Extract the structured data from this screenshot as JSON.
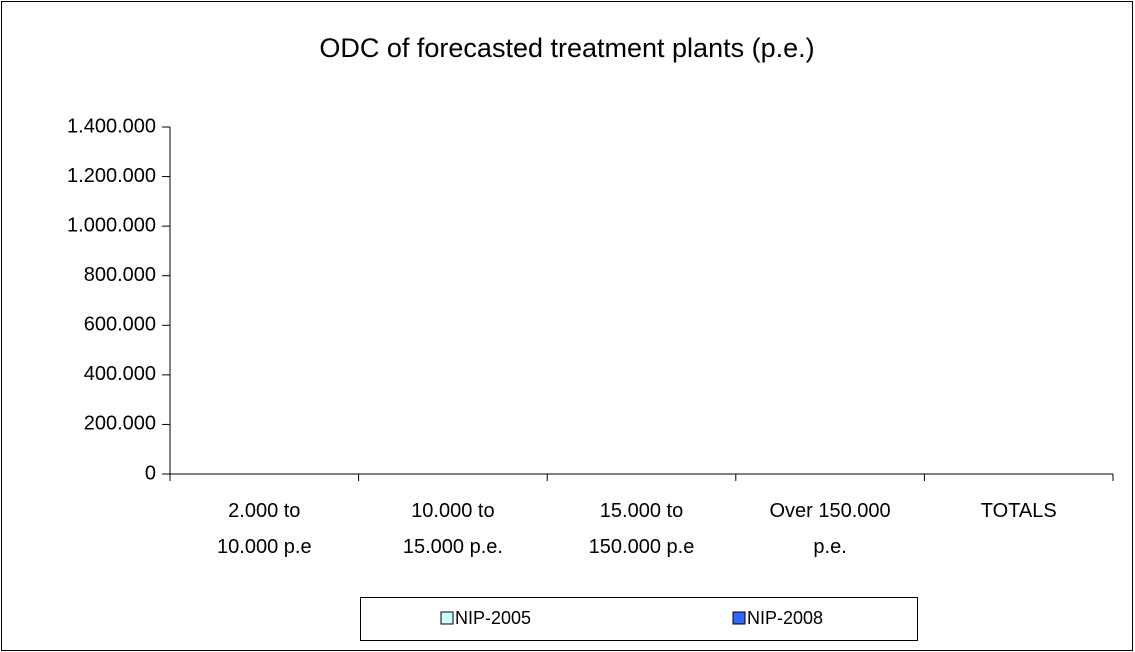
{
  "chart_data": {
    "type": "bar",
    "title": "ODC of forecasted treatment plants (p.e.)",
    "categories": [
      [
        "2.000 to",
        "10.000  p.e"
      ],
      [
        "10.000 to",
        "15.000  p.e."
      ],
      [
        "15.000 to",
        "150.000 p.e"
      ],
      [
        "Over 150.000",
        "p.e."
      ],
      [
        "TOTALS"
      ]
    ],
    "series": [
      {
        "name": "NIP-2005",
        "color": "#ccffff",
        "values": [
          0,
          0,
          0,
          0,
          0
        ]
      },
      {
        "name": "NIP-2008",
        "color": "#3366ff",
        "values": [
          0,
          0,
          0,
          0,
          0
        ]
      }
    ],
    "ylim": [
      0,
      1400000
    ],
    "yticks": [
      0,
      {
        "value": 200000,
        "label": "200.000"
      },
      {
        "value": 400000,
        "label": "400.000"
      },
      {
        "value": 600000,
        "label": "600.000"
      },
      {
        "value": 800000,
        "label": "800.000"
      },
      {
        "value": 1000000,
        "label": "1.000.000"
      },
      {
        "value": 1200000,
        "label": "1.200.000"
      },
      {
        "value": 1400000,
        "label": "1.400.000"
      }
    ],
    "grid": false,
    "legend": "bottom"
  }
}
